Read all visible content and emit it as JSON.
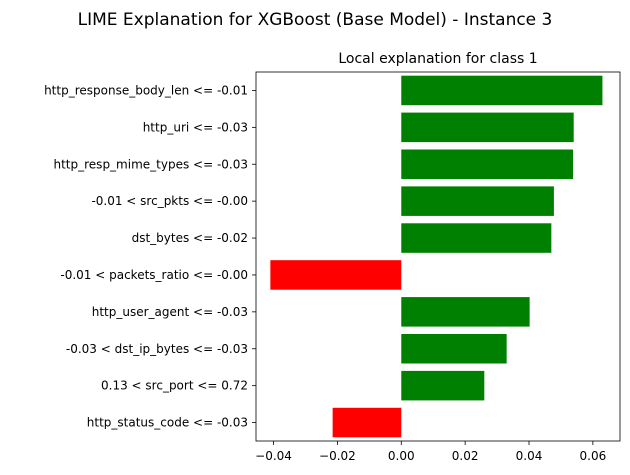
{
  "figure": {
    "suptitle": "LIME Explanation for XGBoost (Base Model) - Instance 3"
  },
  "chart_data": {
    "type": "bar",
    "orientation": "horizontal",
    "title": "Local explanation for class 1",
    "xlabel": "",
    "ylabel": "",
    "xlim": [
      -0.0455,
      0.0685
    ],
    "xticks": [
      -0.04,
      -0.02,
      0.0,
      0.02,
      0.04,
      0.06
    ],
    "xtick_labels": [
      "−0.04",
      "−0.02",
      "0.00",
      "0.02",
      "0.04",
      "0.06"
    ],
    "grid": false,
    "colors": {
      "positive": "#008000",
      "negative": "#ff0000"
    },
    "categories": [
      "http_response_body_len <= -0.01",
      "http_uri <= -0.03",
      "http_resp_mime_types <= -0.03",
      "-0.01 < src_pkts <= -0.00",
      "dst_bytes <= -0.02",
      "-0.01 < packets_ratio <= -0.00",
      "http_user_agent <= -0.03",
      "-0.03 < dst_ip_bytes <= -0.03",
      "0.13 < src_port <= 0.72",
      "http_status_code <= -0.03"
    ],
    "values": [
      0.063,
      0.054,
      0.0538,
      0.0478,
      0.047,
      -0.041,
      0.0402,
      0.033,
      0.026,
      -0.0215
    ]
  }
}
